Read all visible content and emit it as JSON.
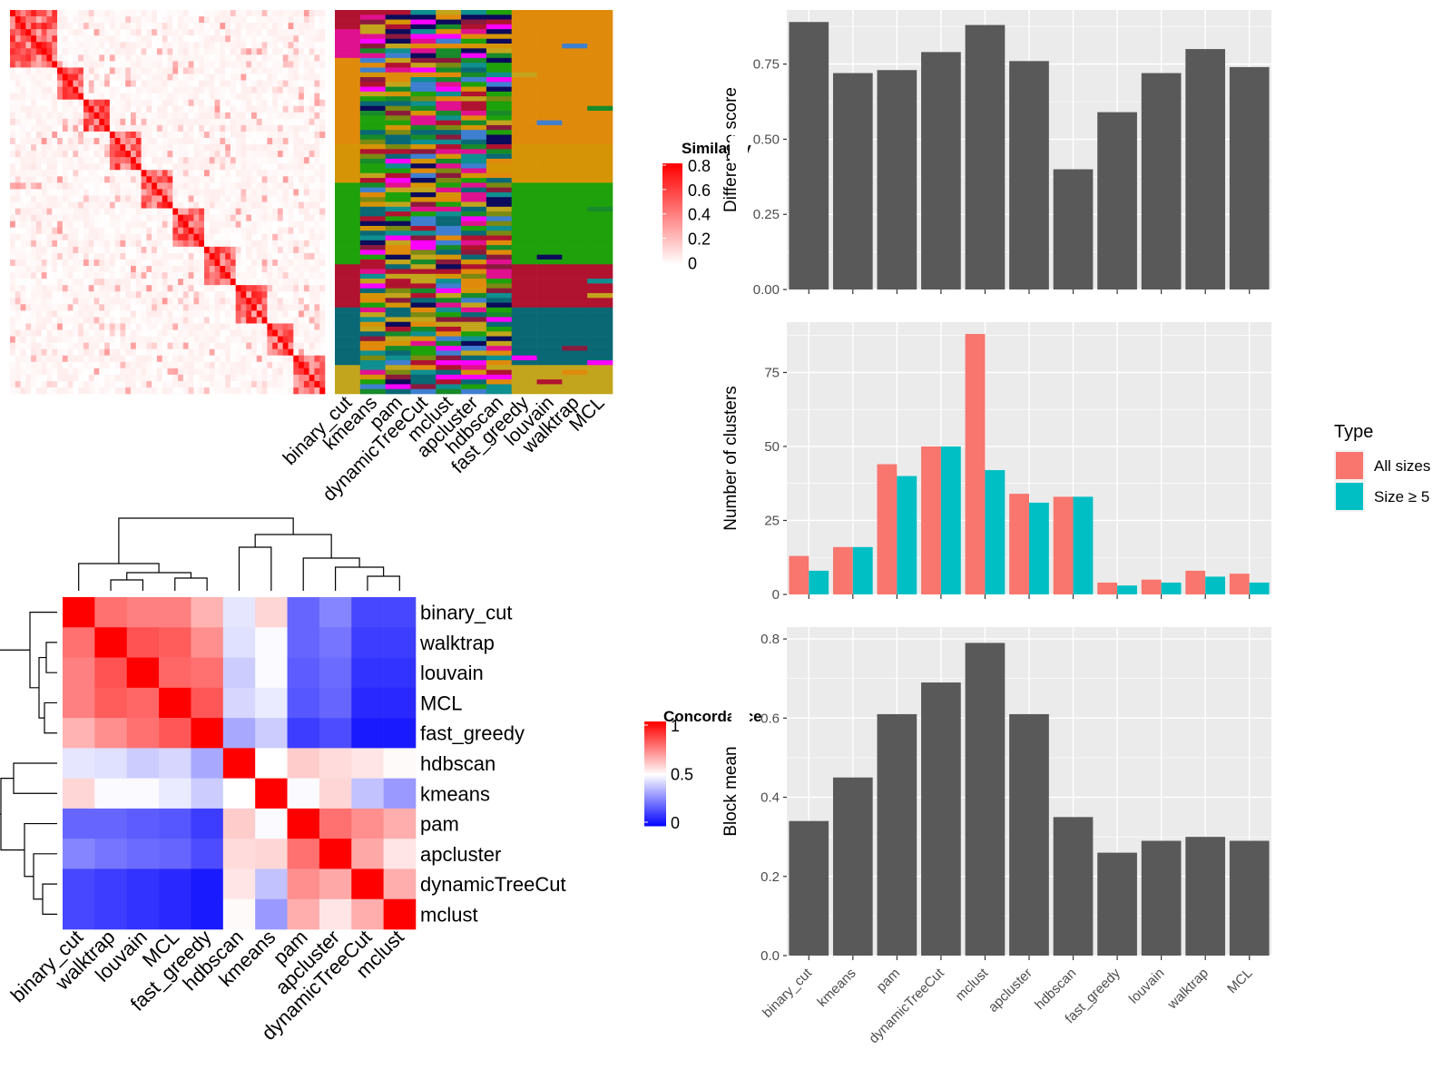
{
  "methods_order_top": [
    "binary_cut",
    "kmeans",
    "pam",
    "dynamicTreeCut",
    "mclust",
    "apcluster",
    "hdbscan",
    "fast_greedy",
    "louvain",
    "walktrap",
    "MCL"
  ],
  "similarity_heatmap": {
    "legend_title": "Similarity",
    "legend_ticks": [
      "0.8",
      "0.6",
      "0.4",
      "0.2",
      "0"
    ],
    "legend_colors": [
      "#ffffff",
      "#ff0000"
    ]
  },
  "cluster_label_heatmap": {
    "columns": [
      "binary_cut",
      "kmeans",
      "pam",
      "dynamicTreeCut",
      "mclust",
      "apcluster",
      "hdbscan",
      "fast_greedy",
      "louvain",
      "walktrap",
      "MCL"
    ]
  },
  "concordance_heatmap": {
    "legend_title": "Concordance",
    "legend_ticks": [
      "1",
      "0.5",
      "0"
    ],
    "legend_colors": [
      "#0000ff",
      "#ffffff",
      "#ff0000"
    ],
    "order": [
      "binary_cut",
      "walktrap",
      "louvain",
      "MCL",
      "fast_greedy",
      "hdbscan",
      "kmeans",
      "pam",
      "apcluster",
      "dynamicTreeCut",
      "mclust"
    ],
    "matrix": [
      [
        1.0,
        0.78,
        0.75,
        0.75,
        0.65,
        0.45,
        0.58,
        0.2,
        0.26,
        0.14,
        0.14
      ],
      [
        0.78,
        1.0,
        0.84,
        0.82,
        0.72,
        0.44,
        0.49,
        0.2,
        0.23,
        0.12,
        0.12
      ],
      [
        0.75,
        0.84,
        1.0,
        0.8,
        0.78,
        0.4,
        0.49,
        0.18,
        0.21,
        0.1,
        0.1
      ],
      [
        0.75,
        0.82,
        0.8,
        1.0,
        0.83,
        0.42,
        0.46,
        0.17,
        0.2,
        0.08,
        0.08
      ],
      [
        0.65,
        0.72,
        0.78,
        0.83,
        1.0,
        0.33,
        0.4,
        0.12,
        0.15,
        0.05,
        0.05
      ],
      [
        0.45,
        0.44,
        0.4,
        0.42,
        0.33,
        1.0,
        0.5,
        0.6,
        0.57,
        0.55,
        0.51
      ],
      [
        0.58,
        0.49,
        0.49,
        0.46,
        0.4,
        0.5,
        1.0,
        0.49,
        0.58,
        0.38,
        0.3
      ],
      [
        0.2,
        0.2,
        0.18,
        0.17,
        0.12,
        0.6,
        0.49,
        1.0,
        0.78,
        0.72,
        0.66
      ],
      [
        0.26,
        0.23,
        0.21,
        0.2,
        0.15,
        0.57,
        0.58,
        0.78,
        1.0,
        0.67,
        0.55
      ],
      [
        0.14,
        0.12,
        0.1,
        0.08,
        0.05,
        0.55,
        0.38,
        0.72,
        0.67,
        1.0,
        0.66
      ],
      [
        0.14,
        0.12,
        0.1,
        0.08,
        0.05,
        0.51,
        0.3,
        0.66,
        0.55,
        0.66,
        1.0
      ]
    ]
  },
  "chart_data": [
    {
      "type": "bar",
      "ylabel": "Difference score",
      "categories": [
        "binary_cut",
        "kmeans",
        "pam",
        "dynamicTreeCut",
        "mclust",
        "apcluster",
        "hdbscan",
        "fast_greedy",
        "louvain",
        "walktrap",
        "MCL"
      ],
      "values": [
        0.89,
        0.72,
        0.73,
        0.79,
        0.88,
        0.76,
        0.4,
        0.59,
        0.72,
        0.8,
        0.74
      ],
      "yticks": [
        "0.00",
        "0.25",
        "0.50",
        "0.75"
      ],
      "ylim": [
        0,
        0.93
      ],
      "grid": true
    },
    {
      "type": "bar",
      "ylabel": "Number of clusters",
      "legend_title": "Type",
      "legend_position": "right",
      "categories": [
        "binary_cut",
        "kmeans",
        "pam",
        "dynamicTreeCut",
        "mclust",
        "apcluster",
        "hdbscan",
        "fast_greedy",
        "louvain",
        "walktrap",
        "MCL"
      ],
      "series": [
        {
          "name": "All sizes",
          "color": "#f8766d",
          "values": [
            13,
            16,
            44,
            50,
            88,
            34,
            33,
            4,
            5,
            8,
            7
          ]
        },
        {
          "name": "Size ≥ 5",
          "color": "#00bfc4",
          "values": [
            8,
            16,
            40,
            50,
            42,
            31,
            33,
            3,
            4,
            6,
            4
          ]
        }
      ],
      "yticks": [
        "0",
        "25",
        "50",
        "75"
      ],
      "ylim": [
        0,
        92
      ],
      "grid": true
    },
    {
      "type": "bar",
      "ylabel": "Block mean",
      "categories": [
        "binary_cut",
        "kmeans",
        "pam",
        "dynamicTreeCut",
        "mclust",
        "apcluster",
        "hdbscan",
        "fast_greedy",
        "louvain",
        "walktrap",
        "MCL"
      ],
      "values": [
        0.34,
        0.45,
        0.61,
        0.69,
        0.79,
        0.61,
        0.35,
        0.26,
        0.29,
        0.3,
        0.29
      ],
      "yticks": [
        "0.0",
        "0.2",
        "0.4",
        "0.6",
        "0.8"
      ],
      "ylim": [
        0,
        0.83
      ],
      "grid": true
    }
  ]
}
